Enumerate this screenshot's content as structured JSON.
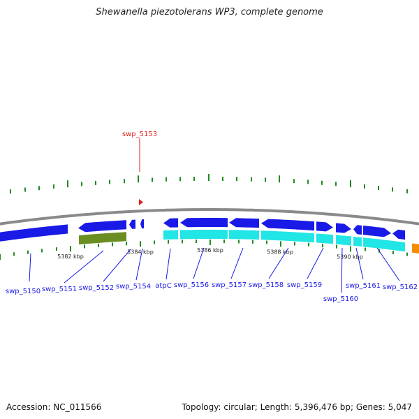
{
  "title": "Shewanella piezotolerans WP3, complete genome",
  "footer": {
    "accession": "Accession: NC_011566",
    "stats": "Topology: circular; Length: 5,396,476 bp; Genes: 5,047"
  },
  "highlight_label": "swp_5153",
  "colors": {
    "background": "#ffffff",
    "backbone": "#8a8a8a",
    "forward_gene": "#1a1ae6",
    "reverse_gene": "#1a1ae6",
    "cds_light": "#22e5e5",
    "cds_olive": "#6b8e23",
    "orange_feature": "#f28c00",
    "label_blue": "#1a1ae6",
    "highlight_red": "#e02020",
    "tick_green": "#228b22",
    "ruler_text": "#222222"
  },
  "ticks": [
    "5382 kbp",
    "5384 kbp",
    "5386 kbp",
    "5388 kbp",
    "5390 kbp"
  ],
  "gene_labels": [
    "swp_5150",
    "swp_5151",
    "swp_5152",
    "swp_5154",
    "atpC",
    "swp_5156",
    "swp_5157",
    "swp_5158",
    "swp_5159",
    "swp_5160",
    "swp_5161",
    "swp_5162"
  ]
}
